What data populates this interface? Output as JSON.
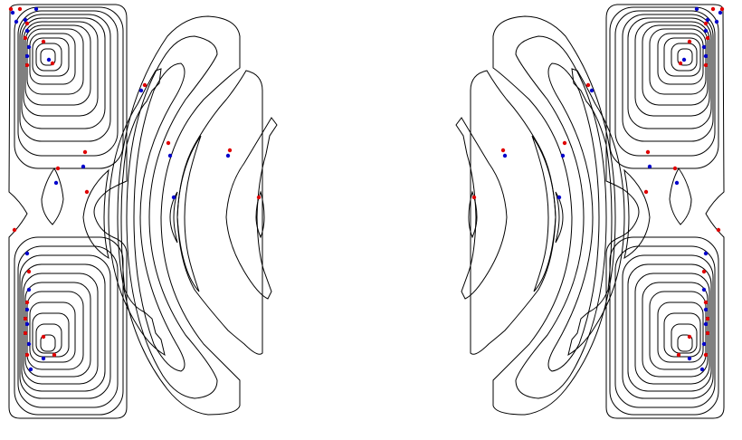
{
  "figure": {
    "panels": [
      {
        "id": "left",
        "side": "left"
      },
      {
        "id": "right",
        "side": "right"
      }
    ],
    "colors": {
      "background": "#ffffff",
      "contour": "#000000",
      "marker_red": "#e00000",
      "marker_blue": "#0000cc"
    }
  }
}
